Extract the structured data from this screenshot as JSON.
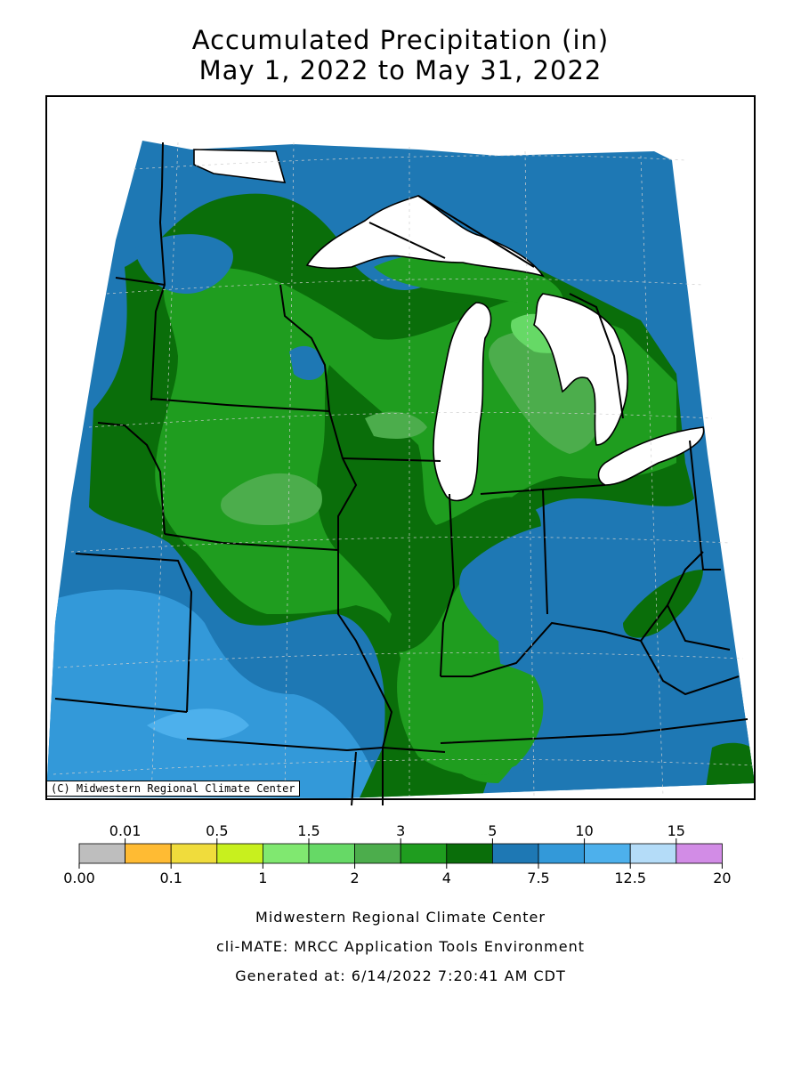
{
  "title": {
    "line1": "Accumulated Precipitation (in)",
    "line2": "May 1, 2022 to May 31, 2022"
  },
  "map": {
    "credit": "(C) Midwestern Regional Climate Center",
    "lake_color": "#ffffff",
    "regions": [
      {
        "category": "5 to 7.5 in",
        "color": "#1e78b4",
        "areas": [
          "western Minnesota",
          "eastern Dakotas",
          "Missouri",
          "Kentucky",
          "West Virginia",
          "eastern Ohio"
        ]
      },
      {
        "category": "7.5 to 10 in",
        "color": "#3399d9",
        "areas": [
          "Nebraska",
          "Kansas",
          "western Missouri"
        ]
      },
      {
        "category": "4 to 5 in",
        "color": "#0a6e0a",
        "areas": [
          "Wisconsin",
          "Iowa",
          "southern Illinois"
        ]
      },
      {
        "category": "3 to 4 in",
        "color": "#1f9d1f",
        "areas": [
          "Illinois",
          "Indiana",
          "Michigan"
        ]
      },
      {
        "category": "2 to 3 in",
        "color": "#4cad4c",
        "areas": [
          "central Iowa",
          "Lower Michigan"
        ]
      },
      {
        "category": "1.5 to 2 in",
        "color": "#66d966",
        "areas": [
          "northern Lower Michigan"
        ]
      }
    ]
  },
  "legend": {
    "top_labels": [
      "0.01",
      "0.5",
      "1.5",
      "3",
      "5",
      "10",
      "15"
    ],
    "bottom_labels": [
      "0.00",
      "0.1",
      "1",
      "2",
      "4",
      "7.5",
      "12.5",
      "20"
    ],
    "colors": [
      "#bebebe",
      "#ffbb33",
      "#f0dc3c",
      "#c8f01e",
      "#80e870",
      "#66d966",
      "#4cad4c",
      "#1f9d1f",
      "#0a6e0a",
      "#1e78b4",
      "#3399d9",
      "#4db0ec",
      "#b4dcf8",
      "#d28ce6"
    ]
  },
  "footer": {
    "line1": "Midwestern Regional Climate Center",
    "line2": "cli-MATE: MRCC Application Tools Environment",
    "line3": "Generated at: 6/14/2022 7:20:41 AM CDT"
  }
}
